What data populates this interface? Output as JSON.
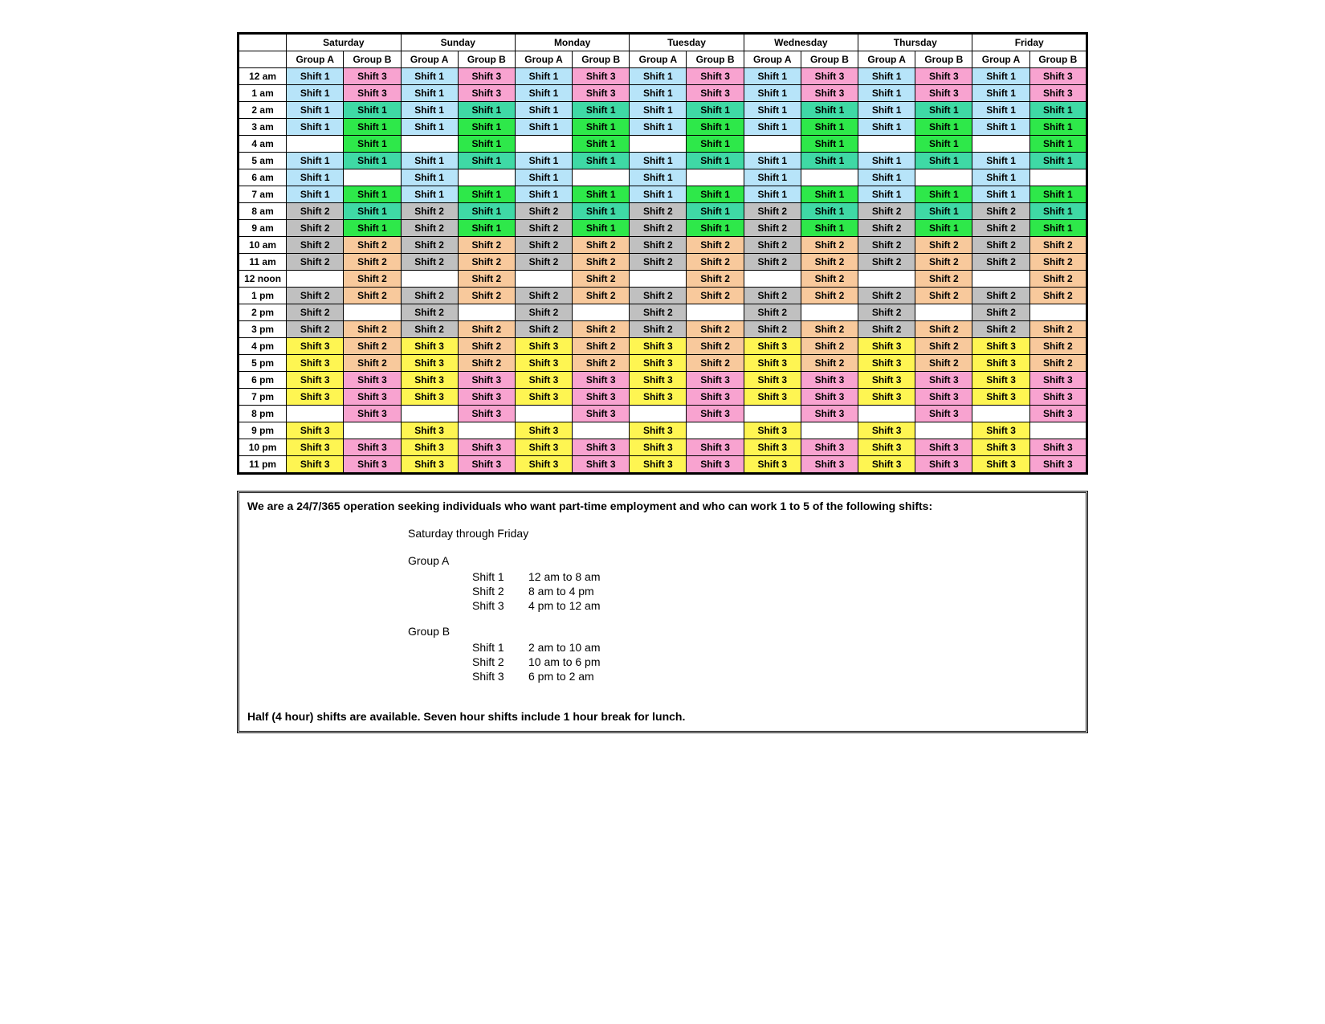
{
  "colors": {
    "blue": "#b7e4f9",
    "pink": "#f8a3d0",
    "green": "#2ee84a",
    "teal": "#3fd9a5",
    "grey": "#c0c0c0",
    "peach": "#f8c99c",
    "yellow": "#fef552",
    "white": "#ffffff",
    "black": "#000000"
  },
  "typography": {
    "cell_font_size_pt": 9,
    "notes_font_size_pt": 11,
    "font_family": "Arial"
  },
  "schedule": {
    "days": [
      "Saturday",
      "Sunday",
      "Monday",
      "Tuesday",
      "Wednesday",
      "Thursday",
      "Friday"
    ],
    "group_labels": [
      "Group A",
      "Group B"
    ],
    "time_labels": [
      "12 am",
      "1 am",
      "2 am",
      "3 am",
      "4 am",
      "5 am",
      "6 am",
      "7 am",
      "8 am",
      "9 am",
      "10 am",
      "11 am",
      "12 noon",
      "1 pm",
      "2 pm",
      "3 pm",
      "4 pm",
      "5 pm",
      "6 pm",
      "7 pm",
      "8 pm",
      "9 pm",
      "10 pm",
      "11 pm"
    ],
    "groupA_pattern": [
      {
        "label": "Shift 1",
        "color": "blue"
      },
      {
        "label": "Shift 1",
        "color": "blue"
      },
      {
        "label": "Shift 1",
        "color": "blue"
      },
      {
        "label": "Shift 1",
        "color": "blue"
      },
      {
        "label": "",
        "color": "white"
      },
      {
        "label": "Shift 1",
        "color": "blue"
      },
      {
        "label": "Shift 1",
        "color": "blue"
      },
      {
        "label": "Shift 1",
        "color": "blue"
      },
      {
        "label": "Shift 2",
        "color": "grey"
      },
      {
        "label": "Shift 2",
        "color": "grey"
      },
      {
        "label": "Shift 2",
        "color": "grey"
      },
      {
        "label": "Shift 2",
        "color": "grey"
      },
      {
        "label": "",
        "color": "white"
      },
      {
        "label": "Shift 2",
        "color": "grey"
      },
      {
        "label": "Shift 2",
        "color": "grey"
      },
      {
        "label": "Shift 2",
        "color": "grey"
      },
      {
        "label": "Shift 3",
        "color": "yellow"
      },
      {
        "label": "Shift 3",
        "color": "yellow"
      },
      {
        "label": "Shift 3",
        "color": "yellow"
      },
      {
        "label": "Shift 3",
        "color": "yellow"
      },
      {
        "label": "",
        "color": "white"
      },
      {
        "label": "Shift 3",
        "color": "yellow"
      },
      {
        "label": "Shift 3",
        "color": "yellow"
      },
      {
        "label": "Shift 3",
        "color": "yellow"
      }
    ],
    "groupB_pattern": [
      {
        "label": "Shift 3",
        "color": "pink"
      },
      {
        "label": "Shift 3",
        "color": "pink"
      },
      {
        "label": "Shift 1",
        "color": "teal"
      },
      {
        "label": "Shift 1",
        "color": "green"
      },
      {
        "label": "Shift 1",
        "color": "green"
      },
      {
        "label": "Shift 1",
        "color": "teal"
      },
      {
        "label": "",
        "color": "white"
      },
      {
        "label": "Shift 1",
        "color": "green"
      },
      {
        "label": "Shift 1",
        "color": "teal"
      },
      {
        "label": "Shift 1",
        "color": "green"
      },
      {
        "label": "Shift 2",
        "color": "peach"
      },
      {
        "label": "Shift 2",
        "color": "peach"
      },
      {
        "label": "Shift 2",
        "color": "peach"
      },
      {
        "label": "Shift 2",
        "color": "peach"
      },
      {
        "label": "",
        "color": "white"
      },
      {
        "label": "Shift 2",
        "color": "peach"
      },
      {
        "label": "Shift 2",
        "color": "peach"
      },
      {
        "label": "Shift 2",
        "color": "peach"
      },
      {
        "label": "Shift 3",
        "color": "pink"
      },
      {
        "label": "Shift 3",
        "color": "pink"
      },
      {
        "label": "Shift 3",
        "color": "pink"
      },
      {
        "label": "",
        "color": "white"
      },
      {
        "label": "Shift 3",
        "color": "pink"
      },
      {
        "label": "Shift 3",
        "color": "pink"
      }
    ]
  },
  "notes": {
    "headline": "We are a 24/7/365 operation seeking individuals who want part-time employment and who can work 1 to 5 of the following shifts:",
    "subhead": "Saturday through Friday",
    "groups": [
      {
        "name": "Group A",
        "shifts": [
          {
            "name": "Shift 1",
            "span": "12 am to 8 am"
          },
          {
            "name": "Shift 2",
            "span": "8 am to 4 pm"
          },
          {
            "name": "Shift 3",
            "span": "4 pm to 12 am"
          }
        ]
      },
      {
        "name": "Group B",
        "shifts": [
          {
            "name": "Shift 1",
            "span": "2 am to 10 am"
          },
          {
            "name": "Shift 2",
            "span": "10 am to 6 pm"
          },
          {
            "name": "Shift 3",
            "span": "6 pm to 2 am"
          }
        ]
      }
    ],
    "footer": "Half (4 hour) shifts are available.  Seven hour shifts include 1 hour break for lunch."
  }
}
